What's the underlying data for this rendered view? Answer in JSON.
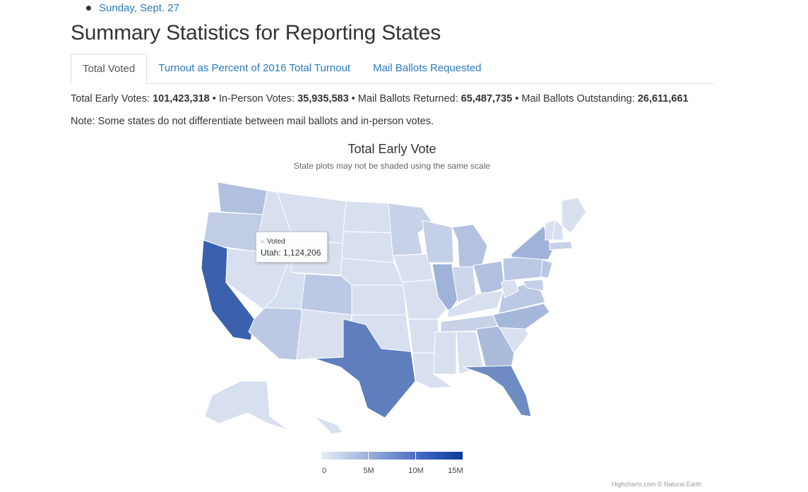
{
  "date_links": [
    "Sunday, Sept. 27"
  ],
  "page_title": "Summary Statistics for Reporting States",
  "tabs": [
    {
      "label": "Total Voted",
      "active": true
    },
    {
      "label": "Turnout as Percent of 2016 Total Turnout",
      "active": false
    },
    {
      "label": "Mail Ballots Requested",
      "active": false
    }
  ],
  "stats": {
    "total_label": "Total Early Votes: ",
    "total_value": "101,423,318",
    "inperson_label": "In-Person Votes: ",
    "inperson_value": "35,935,583",
    "returned_label": "Mail Ballots Returned: ",
    "returned_value": "65,487,735",
    "outstanding_label": "Mail Ballots Outstanding: ",
    "outstanding_value": "26,611,661",
    "separator": " • "
  },
  "note": "Note: Some states do not differentiate between mail ballots and in-person votes.",
  "chart_data": {
    "type": "choropleth",
    "title": "Total Early Vote",
    "subtitle": "State plots may not be shaded using the same scale",
    "series_name": "Voted",
    "tooltip": {
      "series": "Voted",
      "text": "Utah: 1,124,206",
      "state": "Utah",
      "value": 1124206
    },
    "colorscale": {
      "min": 0,
      "max": 16000000,
      "colors": [
        "#e8edf6",
        "#0a3a9a"
      ]
    },
    "legend_ticks": [
      "0",
      "5M",
      "10M",
      "15M"
    ],
    "states": [
      {
        "name": "California",
        "level": 0.78
      },
      {
        "name": "Texas",
        "level": 0.62
      },
      {
        "name": "Florida",
        "level": 0.55
      },
      {
        "name": "Illinois",
        "level": 0.33
      },
      {
        "name": "New York",
        "level": 0.33
      },
      {
        "name": "North Carolina",
        "level": 0.3
      },
      {
        "name": "Georgia",
        "level": 0.28
      },
      {
        "name": "Washington",
        "level": 0.25
      },
      {
        "name": "Ohio",
        "level": 0.25
      },
      {
        "name": "Michigan",
        "level": 0.24
      },
      {
        "name": "Arizona",
        "level": 0.2
      },
      {
        "name": "Colorado",
        "level": 0.2
      },
      {
        "name": "Pennsylvania",
        "level": 0.2
      },
      {
        "name": "Virginia",
        "level": 0.2
      },
      {
        "name": "New Jersey",
        "level": 0.22
      },
      {
        "name": "Oregon",
        "level": 0.18
      },
      {
        "name": "Wisconsin",
        "level": 0.16
      },
      {
        "name": "Minnesota",
        "level": 0.15
      },
      {
        "name": "Tennessee",
        "level": 0.15
      },
      {
        "name": "Indiana",
        "level": 0.13
      },
      {
        "name": "Massachusetts",
        "level": 0.15
      },
      {
        "name": "Maryland",
        "level": 0.16
      },
      {
        "name": "Utah",
        "level": 0.08
      }
    ]
  },
  "credits": "Highcharts.com © Natural Earth"
}
